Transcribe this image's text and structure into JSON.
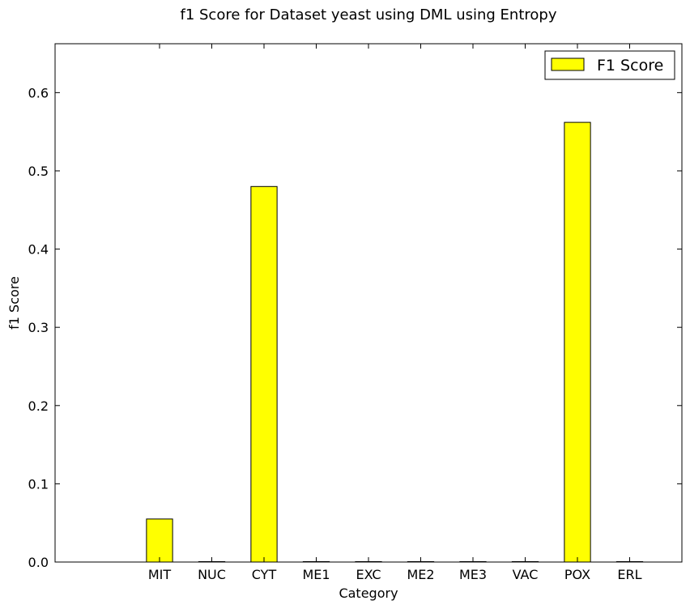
{
  "chart_data": {
    "type": "bar",
    "title": "f1 Score for Dataset yeast using DML using Entropy",
    "xlabel": "Category",
    "ylabel": "f1 Score",
    "categories": [
      "MIT",
      "NUC",
      "CYT",
      "ME1",
      "EXC",
      "ME2",
      "ME3",
      "VAC",
      "POX",
      "ERL"
    ],
    "series": [
      {
        "name": "F1 Score",
        "values": [
          0.055,
          0.0,
          0.48,
          0.0,
          0.0,
          0.0,
          0.0,
          0.0,
          0.562,
          0.0
        ]
      }
    ],
    "ylim": [
      0,
      0.6625
    ],
    "xlim": [
      -2,
      10
    ],
    "bar_width": 0.5,
    "yticks": [
      0.0,
      0.1,
      0.2,
      0.3,
      0.4,
      0.5,
      0.6
    ],
    "ytick_labels": [
      "0.0",
      "0.1",
      "0.2",
      "0.3",
      "0.4",
      "0.5",
      "0.6"
    ],
    "legend_position": "top-right",
    "grid": false,
    "bar_color": "#ffff00",
    "edge_color": "#000000"
  }
}
